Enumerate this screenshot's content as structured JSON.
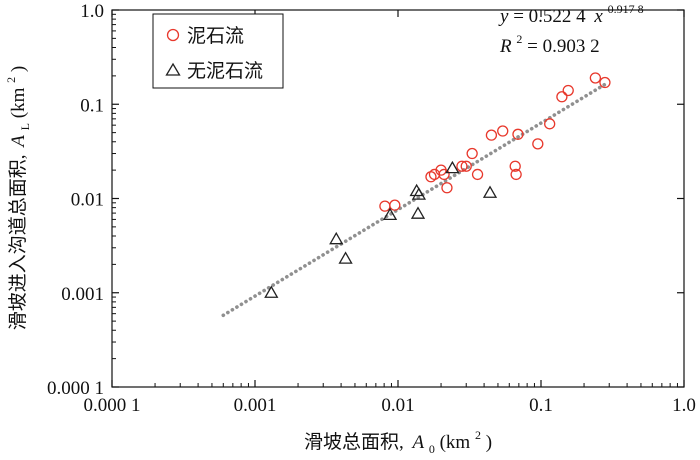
{
  "chart_data": {
    "type": "scatter",
    "xscale": "log",
    "yscale": "log",
    "xlim": [
      0.0001,
      1.0
    ],
    "ylim": [
      0.0001,
      1.0
    ],
    "x_ticks": [
      {
        "value": 0.0001,
        "label": "0.000 1"
      },
      {
        "value": 0.001,
        "label": "0.001"
      },
      {
        "value": 0.01,
        "label": "0.01"
      },
      {
        "value": 0.1,
        "label": "0.1"
      },
      {
        "value": 1.0,
        "label": "1.0"
      }
    ],
    "y_ticks": [
      {
        "value": 0.0001,
        "label": "0.000 1"
      },
      {
        "value": 0.001,
        "label": "0.001"
      },
      {
        "value": 0.01,
        "label": "0.01"
      },
      {
        "value": 0.1,
        "label": "0.1"
      },
      {
        "value": 1.0,
        "label": "1.0"
      }
    ],
    "xlabel": {
      "main": "滑坡总面积,",
      "var": "A",
      "sub": "0",
      "unit": "(km",
      "sup": "2",
      "close": ")"
    },
    "ylabel": {
      "main": "滑坡进入沟道总面积,",
      "var": "A",
      "sub": "L",
      "unit": "(km",
      "sup": "2",
      "close": ")"
    },
    "grid": false,
    "legend_placement": "top-left",
    "series": [
      {
        "name": "泥石流",
        "marker": "circle",
        "color": "#e8382c",
        "points": [
          [
            0.0081,
            0.0083
          ],
          [
            0.0095,
            0.0085
          ],
          [
            0.017,
            0.017
          ],
          [
            0.018,
            0.018
          ],
          [
            0.02,
            0.02
          ],
          [
            0.021,
            0.018
          ],
          [
            0.022,
            0.013
          ],
          [
            0.028,
            0.022
          ],
          [
            0.03,
            0.022
          ],
          [
            0.033,
            0.03
          ],
          [
            0.036,
            0.018
          ],
          [
            0.045,
            0.047
          ],
          [
            0.054,
            0.052
          ],
          [
            0.066,
            0.022
          ],
          [
            0.067,
            0.018
          ],
          [
            0.069,
            0.048
          ],
          [
            0.095,
            0.038
          ],
          [
            0.115,
            0.062
          ],
          [
            0.14,
            0.12
          ],
          [
            0.155,
            0.14
          ],
          [
            0.24,
            0.19
          ],
          [
            0.28,
            0.17
          ]
        ]
      },
      {
        "name": "无泥石流",
        "marker": "triangle",
        "color": "#222222",
        "points": [
          [
            0.0013,
            0.001
          ],
          [
            0.0037,
            0.0037
          ],
          [
            0.0043,
            0.0023
          ],
          [
            0.0088,
            0.0067
          ],
          [
            0.0135,
            0.012
          ],
          [
            0.014,
            0.011
          ],
          [
            0.0138,
            0.0069
          ],
          [
            0.024,
            0.021
          ],
          [
            0.044,
            0.0115
          ]
        ]
      }
    ],
    "fit": {
      "type": "power",
      "a": 0.5224,
      "b": 0.9178,
      "x_range": [
        0.0006,
        0.28
      ],
      "style": "dotted",
      "color": "#909090",
      "equation": {
        "y": "y",
        "eq": " = 0.522 4",
        "x": "x",
        "exp": "0.917 8"
      },
      "r2": {
        "R": "R",
        "sup": "2",
        "rest": "= 0.903 2"
      }
    }
  }
}
